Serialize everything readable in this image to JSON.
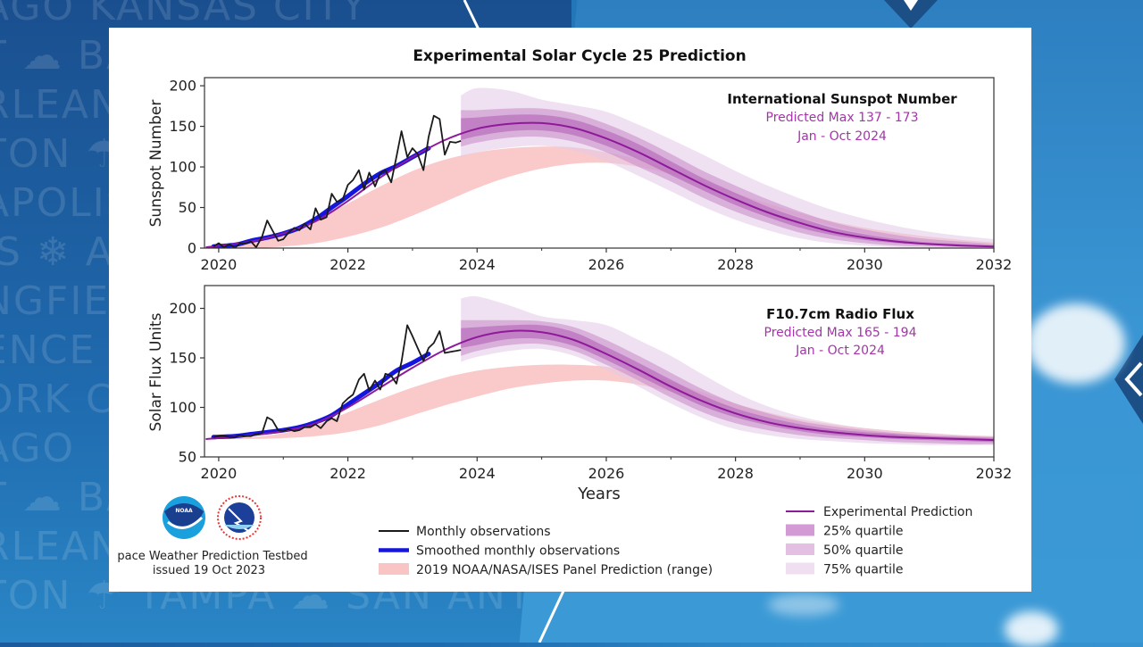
{
  "background": {
    "city_words": [
      "AGO  KANSAS CITY",
      "T ☁ BA",
      "RLEANS",
      "TON ☂ ",
      "APOLIS",
      "IS ❄ AI",
      "NGFIELD",
      "ENCE",
      "ORK CI",
      "AGO ",
      "T ☁ BA",
      "RLEANS",
      "TON ☂ TAMPA ☁ SAN ANTONIO"
    ]
  },
  "chart_data": [
    {
      "id": "sunspot",
      "type": "line",
      "title": "Experimental Solar Cycle 25 Prediction",
      "xlabel": "",
      "ylabel": "Sunspot Number",
      "xlim": [
        2019.78,
        2032
      ],
      "ylim": [
        0,
        210
      ],
      "xticks": [
        2020,
        2022,
        2024,
        2026,
        2028,
        2030,
        2032
      ],
      "yticks": [
        0,
        50,
        100,
        150,
        200
      ],
      "annotation": {
        "heading": "International Sunspot Number",
        "line1": "Predicted Max 137 - 173",
        "line2": "Jan - Oct 2024"
      },
      "monthly_observations": {
        "x": [
          2019.92,
          2020.0,
          2020.08,
          2020.17,
          2020.25,
          2020.33,
          2020.42,
          2020.5,
          2020.58,
          2020.67,
          2020.75,
          2020.83,
          2020.92,
          2021.0,
          2021.08,
          2021.17,
          2021.25,
          2021.33,
          2021.42,
          2021.5,
          2021.58,
          2021.67,
          2021.75,
          2021.83,
          2021.92,
          2022.0,
          2022.08,
          2022.17,
          2022.25,
          2022.33,
          2022.42,
          2022.5,
          2022.58,
          2022.67,
          2022.75,
          2022.83,
          2022.92,
          2023.0,
          2023.08,
          2023.17,
          2023.25,
          2023.33,
          2023.42,
          2023.5,
          2023.58,
          2023.67,
          2023.75
        ],
        "y": [
          2,
          6,
          1,
          5,
          0,
          6,
          6,
          8,
          1,
          14,
          34,
          22,
          9,
          11,
          19,
          25,
          22,
          30,
          23,
          49,
          35,
          38,
          67,
          57,
          60,
          78,
          84,
          96,
          72,
          93,
          76,
          92,
          96,
          81,
          112,
          144,
          112,
          123,
          116,
          96,
          137,
          163,
          159,
          115,
          131,
          130,
          132
        ]
      },
      "smoothed_observations": {
        "x": [
          2019.92,
          2020.25,
          2020.5,
          2020.75,
          2021.0,
          2021.25,
          2021.5,
          2021.75,
          2022.0,
          2022.25,
          2022.5,
          2022.75,
          2023.0,
          2023.25
        ],
        "y": [
          2,
          4,
          9,
          13,
          18,
          25,
          36,
          50,
          64,
          79,
          92,
          101,
          112,
          123
        ]
      },
      "experimental_prediction": {
        "x": [
          2019.8,
          2020.5,
          2021.0,
          2021.5,
          2022.0,
          2022.5,
          2023.0,
          2023.5,
          2024.0,
          2024.5,
          2025.0,
          2025.5,
          2026.0,
          2026.5,
          2027.0,
          2027.5,
          2028.0,
          2028.5,
          2029.0,
          2029.5,
          2030.0,
          2030.5,
          2031.0,
          2031.5,
          2032.0
        ],
        "y": [
          1,
          8,
          18,
          33,
          58,
          87,
          112,
          133,
          147,
          153,
          154,
          148,
          135,
          118,
          98,
          78,
          60,
          44,
          31,
          20,
          13,
          8,
          5,
          3,
          2
        ]
      },
      "quartile_bands": {
        "x": [
          2023.75,
          2024.0,
          2024.5,
          2025.0,
          2025.5,
          2026.0,
          2026.5,
          2027.0,
          2027.5,
          2028.0,
          2028.5,
          2029.0,
          2029.5,
          2030.0,
          2030.5,
          2031.0,
          2031.5,
          2032.0
        ],
        "q25_low": [
          133,
          138,
          144,
          145,
          139,
          126,
          109,
          90,
          71,
          53,
          38,
          25,
          16,
          10,
          6,
          4,
          3,
          2
        ],
        "q25_high": [
          160,
          161,
          164,
          164,
          158,
          145,
          128,
          107,
          86,
          68,
          51,
          37,
          25,
          17,
          11,
          7,
          5,
          3
        ],
        "q50_low": [
          125,
          130,
          136,
          137,
          131,
          118,
          100,
          82,
          62,
          45,
          31,
          19,
          11,
          6,
          3,
          2,
          1,
          1
        ],
        "q50_high": [
          170,
          170,
          172,
          172,
          166,
          153,
          136,
          116,
          95,
          77,
          60,
          45,
          32,
          23,
          16,
          11,
          8,
          5
        ],
        "q75_low": [
          112,
          118,
          124,
          126,
          120,
          107,
          89,
          70,
          51,
          35,
          22,
          12,
          6,
          3,
          1,
          0,
          0,
          0
        ],
        "q75_high": [
          188,
          197,
          194,
          183,
          176,
          168,
          152,
          134,
          115,
          95,
          77,
          61,
          47,
          36,
          27,
          20,
          15,
          11
        ]
      },
      "panel_2019_range": {
        "x": [
          2019.8,
          2020.5,
          2021.0,
          2021.5,
          2022.0,
          2022.5,
          2023.0,
          2023.5,
          2024.0,
          2024.5,
          2025.0,
          2025.5,
          2026.0,
          2026.5,
          2027.0,
          2027.5,
          2028.0,
          2028.5,
          2029.0,
          2029.5,
          2030.0,
          2030.5,
          2031.0,
          2031.5,
          2032.0
        ],
        "low": [
          0,
          0,
          2,
          6,
          14,
          25,
          40,
          57,
          74,
          88,
          98,
          104,
          105,
          100,
          91,
          79,
          65,
          51,
          38,
          27,
          18,
          11,
          7,
          4,
          2
        ],
        "high": [
          0,
          8,
          19,
          35,
          55,
          76,
          95,
          109,
          118,
          123,
          125,
          124,
          118,
          109,
          96,
          82,
          68,
          55,
          43,
          33,
          25,
          19,
          14,
          10,
          7
        ]
      }
    },
    {
      "id": "radioflux",
      "type": "line",
      "xlabel": "Years",
      "ylabel": "Solar Flux Units",
      "xlim": [
        2019.78,
        2032
      ],
      "ylim": [
        50,
        223
      ],
      "xticks": [
        2020,
        2022,
        2024,
        2026,
        2028,
        2030,
        2032
      ],
      "yticks": [
        50,
        100,
        150,
        200
      ],
      "annotation": {
        "heading": "F10.7cm Radio Flux",
        "line1": "Predicted Max 165 - 194",
        "line2": "Jan - Oct 2024"
      },
      "monthly_observations": {
        "x": [
          2019.92,
          2020.0,
          2020.08,
          2020.17,
          2020.25,
          2020.33,
          2020.42,
          2020.5,
          2020.58,
          2020.67,
          2020.75,
          2020.83,
          2020.92,
          2021.0,
          2021.08,
          2021.17,
          2021.25,
          2021.33,
          2021.42,
          2021.5,
          2021.58,
          2021.67,
          2021.75,
          2021.83,
          2021.92,
          2022.0,
          2022.08,
          2022.17,
          2022.25,
          2022.33,
          2022.42,
          2022.5,
          2022.58,
          2022.67,
          2022.75,
          2022.83,
          2022.92,
          2023.0,
          2023.08,
          2023.17,
          2023.25,
          2023.33,
          2023.42,
          2023.5,
          2023.58,
          2023.67,
          2023.75
        ],
        "y": [
          70,
          71,
          71,
          70,
          70,
          72,
          71,
          71,
          73,
          74,
          90,
          87,
          77,
          76,
          78,
          76,
          77,
          80,
          80,
          83,
          79,
          86,
          89,
          86,
          104,
          109,
          113,
          128,
          134,
          117,
          127,
          118,
          134,
          132,
          124,
          146,
          183,
          172,
          160,
          147,
          160,
          165,
          177,
          155,
          156,
          157,
          158
        ]
      },
      "smoothed_observations": {
        "x": [
          2019.92,
          2020.25,
          2020.5,
          2020.75,
          2021.0,
          2021.25,
          2021.5,
          2021.75,
          2022.0,
          2022.25,
          2022.5,
          2022.75,
          2023.0,
          2023.25
        ],
        "y": [
          70,
          71,
          73,
          75,
          77,
          80,
          85,
          92,
          103,
          114,
          125,
          137,
          145,
          154
        ]
      },
      "experimental_prediction": {
        "x": [
          2019.8,
          2020.5,
          2021.0,
          2021.5,
          2022.0,
          2022.5,
          2023.0,
          2023.5,
          2024.0,
          2024.5,
          2025.0,
          2025.5,
          2026.0,
          2026.5,
          2027.0,
          2027.5,
          2028.0,
          2028.5,
          2029.0,
          2029.5,
          2030.0,
          2030.5,
          2031.0,
          2031.5,
          2032.0
        ],
        "y": [
          68,
          72,
          76,
          84,
          100,
          120,
          140,
          158,
          171,
          177,
          176,
          168,
          154,
          138,
          121,
          106,
          94,
          85,
          79,
          75,
          72,
          70,
          69,
          68,
          67
        ]
      },
      "quartile_bands": {
        "x": [
          2023.75,
          2024.0,
          2024.5,
          2025.0,
          2025.5,
          2026.0,
          2026.5,
          2027.0,
          2027.5,
          2028.0,
          2028.5,
          2029.0,
          2029.5,
          2030.0,
          2030.5,
          2031.0,
          2031.5,
          2032.0
        ],
        "q25_low": [
          160,
          163,
          169,
          169,
          162,
          148,
          132,
          116,
          101,
          90,
          82,
          76,
          72,
          70,
          68,
          67,
          66,
          65
        ],
        "q25_high": [
          180,
          181,
          183,
          183,
          176,
          161,
          145,
          128,
          112,
          99,
          90,
          83,
          78,
          75,
          73,
          71,
          70,
          69
        ],
        "q50_low": [
          152,
          157,
          163,
          164,
          157,
          143,
          127,
          110,
          95,
          84,
          77,
          72,
          69,
          67,
          65,
          64,
          63,
          63
        ],
        "q50_high": [
          188,
          188,
          188,
          187,
          181,
          168,
          152,
          135,
          118,
          104,
          94,
          86,
          81,
          77,
          74,
          72,
          71,
          70
        ],
        "q75_low": [
          146,
          151,
          157,
          159,
          152,
          138,
          121,
          104,
          89,
          78,
          72,
          68,
          66,
          64,
          63,
          62,
          62,
          62
        ],
        "q75_high": [
          210,
          212,
          203,
          192,
          188,
          183,
          168,
          152,
          133,
          115,
          101,
          91,
          84,
          79,
          76,
          74,
          72,
          71
        ]
      },
      "panel_2019_range": {
        "x": [
          2019.8,
          2020.5,
          2021.0,
          2021.5,
          2022.0,
          2022.5,
          2023.0,
          2023.5,
          2024.0,
          2024.5,
          2025.0,
          2025.5,
          2026.0,
          2026.5,
          2027.0,
          2027.5,
          2028.0,
          2028.5,
          2029.0,
          2029.5,
          2030.0,
          2030.5,
          2031.0,
          2031.5,
          2032.0
        ],
        "low": [
          68,
          68,
          69,
          71,
          75,
          82,
          92,
          102,
          111,
          119,
          124,
          127,
          127,
          123,
          116,
          107,
          98,
          90,
          83,
          78,
          74,
          71,
          69,
          68,
          67
        ],
        "high": [
          68,
          70,
          74,
          82,
          95,
          108,
          120,
          130,
          137,
          141,
          143,
          143,
          141,
          135,
          126,
          115,
          104,
          95,
          88,
          83,
          79,
          76,
          74,
          72,
          71
        ]
      }
    }
  ],
  "legend_left": [
    {
      "label": "Monthly observations",
      "swatch": "line",
      "color": "#1a1a1a"
    },
    {
      "label": "Smoothed monthly observations",
      "swatch": "thick-line",
      "color": "#1515e0"
    },
    {
      "label": "2019 NOAA/NASA/ISES Panel Prediction (range)",
      "swatch": "box",
      "color": "#f9c4c4"
    }
  ],
  "legend_right": [
    {
      "label": "Experimental Prediction",
      "swatch": "line",
      "color": "#8e1a9a"
    },
    {
      "label": "25% quartile",
      "swatch": "box",
      "color": "#d49ad6"
    },
    {
      "label": "50% quartile",
      "swatch": "box",
      "color": "#e3bfe4"
    },
    {
      "label": "75% quartile",
      "swatch": "box",
      "color": "#efdff0"
    }
  ],
  "footer": {
    "org_line": "pace Weather Prediction Testbed",
    "issued": "issued 19 Oct 2023",
    "logo_noaa": "NOAA",
    "logo_nws": "NATIONAL WEATHER SERVICE"
  },
  "colors": {
    "monthly": "#1a1a1a",
    "smoothed": "#1515e0",
    "prediction": "#8e1a9a",
    "q25": "#b05bb5",
    "q50": "#c98fcc",
    "q75": "#e2c8e5",
    "panel_range": "#f7a9a9",
    "annotation": "#a534aa"
  }
}
